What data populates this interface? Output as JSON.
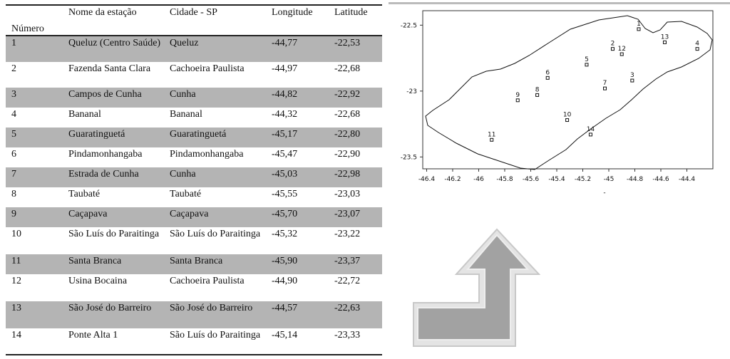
{
  "table": {
    "header": [
      "Número",
      "Nome da estação",
      "Cidade - SP",
      "Longitude",
      "Latitude"
    ],
    "rows": [
      [
        "1",
        "Queluz (Centro Saúde)",
        "Queluz",
        "-44,77",
        "-22,53"
      ],
      [
        "2",
        "Fazenda Santa Clara",
        "Cachoeira Paulista",
        "-44,97",
        "-22,68"
      ],
      [
        "3",
        "Campos de Cunha",
        "Cunha",
        "-44,82",
        "-22,92"
      ],
      [
        "4",
        "Bananal",
        "Bananal",
        "-44,32",
        "-22,68"
      ],
      [
        "5",
        "Guaratinguetá",
        "Guaratinguetá",
        "-45,17",
        "-22,80"
      ],
      [
        "6",
        "Pindamonhangaba",
        "Pindamonhangaba",
        "-45,47",
        "-22,90"
      ],
      [
        "7",
        "Estrada de Cunha",
        "Cunha",
        "-45,03",
        "-22,98"
      ],
      [
        "8",
        "Taubaté",
        "Taubaté",
        "-45,55",
        "-23,03"
      ],
      [
        "9",
        "Caçapava",
        "Caçapava",
        "-45,70",
        "-23,07"
      ],
      [
        "10",
        "São Luís do Paraitinga",
        "São Luís do Paraitinga",
        "-45,32",
        "-23,22"
      ],
      [
        "11",
        "Santa Branca",
        "Santa Branca",
        "-45,90",
        "-23,37"
      ],
      [
        "12",
        "Usina Bocaina",
        "Cachoeira Paulista",
        "-44,90",
        "-22,72"
      ],
      [
        "13",
        "São José do Barreiro",
        "São José do Barreiro",
        "-44,57",
        "-22,63"
      ],
      [
        "14",
        "Ponte Alta 1",
        "São Luís do Paraitinga",
        "-45,14",
        "-23,33"
      ]
    ]
  },
  "map": {
    "xlim": [
      -46.43,
      -44.2
    ],
    "ylim": [
      -23.59,
      -22.39
    ],
    "xticks": [
      -46.4,
      -46.2,
      -46,
      -45.8,
      -45.6,
      -45.4,
      -45.2,
      -45,
      -44.8,
      -44.6,
      -44.4
    ],
    "yticks": [
      -22.5,
      -23,
      -23.5
    ],
    "note": "-"
  }
}
